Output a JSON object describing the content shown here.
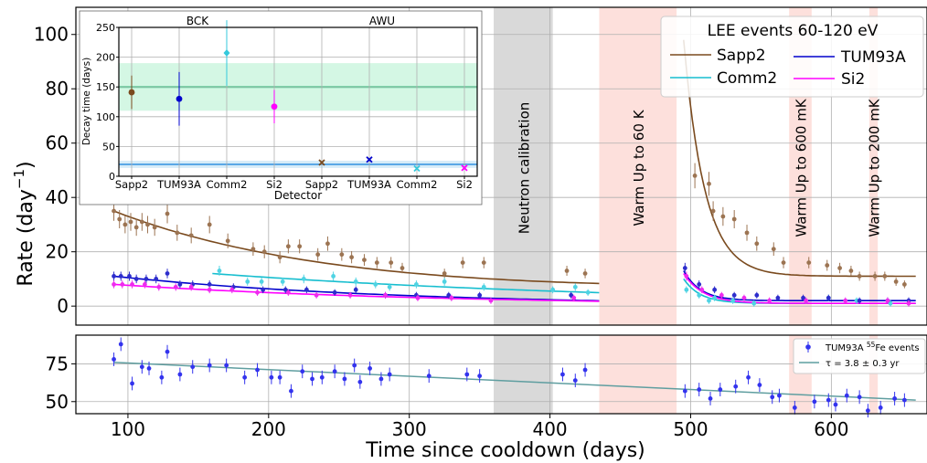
{
  "chart_data": {
    "type": "scatter",
    "xlabel": "Time since cooldown (days)",
    "x_ticks": [
      100,
      200,
      300,
      400,
      500,
      600
    ],
    "xlim": [
      63,
      668
    ],
    "panels": {
      "top": {
        "ylabel_main": "Rate (day",
        "ylabel_sup": "−1",
        "ylabel_end": ")",
        "ylim": [
          -7,
          110
        ],
        "y_ticks": [
          0,
          20,
          40,
          60,
          80,
          100
        ],
        "legend_title": "LEE events 60-120 eV",
        "bands": [
          {
            "label": "Neutron calibration",
            "x0": 360,
            "x1": 402,
            "color": "#d9d9d9"
          },
          {
            "label": "Warm Up to 60 K",
            "x0": 435,
            "x1": 490,
            "color": "#fde0dc"
          },
          {
            "label": "Warm Up to 600 mK",
            "x0": 570,
            "x1": 586,
            "color": "#fde0dc"
          },
          {
            "label": "Warm Up to 200 mK",
            "x0": 627,
            "x1": 633,
            "color": "#fde0dc"
          }
        ],
        "series": [
          {
            "name": "Sapp2",
            "color": "#7a4a1e",
            "point_color": "#9c7452",
            "points": [
              [
                90,
                35
              ],
              [
                94,
                32
              ],
              [
                98,
                30
              ],
              [
                102,
                31
              ],
              [
                106,
                29
              ],
              [
                110,
                31
              ],
              [
                114,
                30
              ],
              [
                119,
                29
              ],
              [
                128,
                34
              ],
              [
                135,
                27
              ],
              [
                145,
                26
              ],
              [
                158,
                30
              ],
              [
                171,
                24
              ],
              [
                189,
                21
              ],
              [
                197,
                20
              ],
              [
                208,
                18
              ],
              [
                214,
                22
              ],
              [
                222,
                22
              ],
              [
                235,
                19
              ],
              [
                242,
                23
              ],
              [
                252,
                19
              ],
              [
                259,
                18
              ],
              [
                268,
                17
              ],
              [
                277,
                16
              ],
              [
                287,
                16
              ],
              [
                295,
                14
              ],
              [
                325,
                12
              ],
              [
                338,
                16
              ],
              [
                353,
                16
              ],
              [
                412,
                13
              ],
              [
                425,
                12
              ],
              [
                503,
                48
              ],
              [
                513,
                45
              ],
              [
                516,
                35
              ],
              [
                523,
                33
              ],
              [
                531,
                32
              ],
              [
                540,
                27
              ],
              [
                547,
                23
              ],
              [
                559,
                21
              ],
              [
                566,
                16
              ],
              [
                584,
                16
              ],
              [
                597,
                15
              ],
              [
                606,
                14
              ],
              [
                614,
                13
              ],
              [
                620,
                11
              ],
              [
                631,
                11
              ],
              [
                638,
                11
              ],
              [
                646,
                9
              ],
              [
                652,
                8
              ]
            ],
            "fits": [
              [
                90,
                35,
                165
              ],
              [
                435,
                0,
                0
              ],
              [
                495,
                98,
                15
              ],
              [
                660,
                11,
                0
              ]
            ]
          },
          {
            "name": "Comm2",
            "color": "#17becf",
            "point_color": "#4fd3e3",
            "points": [
              [
                165,
                13
              ],
              [
                185,
                9
              ],
              [
                195,
                9
              ],
              [
                210,
                9
              ],
              [
                225,
                10
              ],
              [
                246,
                11
              ],
              [
                262,
                9
              ],
              [
                276,
                8
              ],
              [
                286,
                7
              ],
              [
                305,
                8
              ],
              [
                325,
                9
              ],
              [
                353,
                7
              ],
              [
                402,
                6
              ],
              [
                418,
                7
              ],
              [
                427,
                5
              ],
              [
                497,
                6
              ],
              [
                506,
                4
              ],
              [
                513,
                2
              ],
              [
                517,
                3
              ],
              [
                530,
                2
              ],
              [
                545,
                1
              ],
              [
                582,
                2
              ],
              [
                598,
                3
              ],
              [
                618,
                2
              ],
              [
                642,
                1
              ]
            ],
            "fits": [
              [
                160,
                12,
                310
              ],
              [
                435,
                0,
                0
              ],
              [
                495,
                10,
                12
              ],
              [
                660,
                1,
                0
              ]
            ]
          },
          {
            "name": "TUM93A",
            "color": "#0000cc",
            "point_color": "#2d2dcc",
            "points": [
              [
                90,
                11
              ],
              [
                95,
                11
              ],
              [
                101,
                11
              ],
              [
                106,
                10
              ],
              [
                113,
                10
              ],
              [
                120,
                10
              ],
              [
                128,
                12
              ],
              [
                137,
                8
              ],
              [
                146,
                8
              ],
              [
                158,
                8
              ],
              [
                175,
                7
              ],
              [
                196,
                6
              ],
              [
                212,
                6
              ],
              [
                227,
                6
              ],
              [
                247,
                5
              ],
              [
                262,
                6
              ],
              [
                283,
                4
              ],
              [
                305,
                4
              ],
              [
                328,
                4
              ],
              [
                350,
                4
              ],
              [
                415,
                4
              ],
              [
                496,
                14
              ],
              [
                506,
                8
              ],
              [
                517,
                6
              ],
              [
                531,
                4
              ],
              [
                547,
                4
              ],
              [
                562,
                3
              ],
              [
                580,
                3
              ],
              [
                598,
                3
              ],
              [
                620,
                2
              ],
              [
                640,
                2
              ],
              [
                655,
                2
              ]
            ],
            "fits": [
              [
                90,
                11,
                200
              ],
              [
                435,
                0,
                0
              ],
              [
                495,
                13,
                12
              ],
              [
                660,
                2,
                0
              ]
            ]
          },
          {
            "name": "Si2",
            "color": "#ff00ff",
            "point_color": "#ee2bee",
            "points": [
              [
                90,
                8
              ],
              [
                96,
                8
              ],
              [
                103,
                8
              ],
              [
                112,
                8
              ],
              [
                122,
                7
              ],
              [
                134,
                7
              ],
              [
                145,
                7
              ],
              [
                158,
                6
              ],
              [
                174,
                6
              ],
              [
                192,
                5
              ],
              [
                214,
                5
              ],
              [
                234,
                4
              ],
              [
                258,
                4
              ],
              [
                283,
                4
              ],
              [
                306,
                3
              ],
              [
                330,
                3
              ],
              [
                358,
                2
              ],
              [
                417,
                3
              ],
              [
                497,
                11
              ],
              [
                508,
                6
              ],
              [
                522,
                4
              ],
              [
                538,
                3
              ],
              [
                556,
                2
              ],
              [
                582,
                2
              ],
              [
                610,
                2
              ],
              [
                640,
                2
              ],
              [
                655,
                1
              ]
            ],
            "fits": [
              [
                90,
                8,
                230
              ],
              [
                435,
                0,
                0
              ],
              [
                495,
                12,
                14
              ],
              [
                660,
                1,
                0
              ]
            ]
          }
        ]
      },
      "bottom": {
        "ylim": [
          42,
          94
        ],
        "y_ticks": [
          50,
          75
        ],
        "series": {
          "name": "TUM93A ",
          "color": "#3333ee"
        },
        "legend_sup": "55",
        "legend_rest": "Fe events",
        "fit_label": "τ = 3.8 ± 0.3 yr",
        "fit_color": "#5f9ea0",
        "fit_line": [
          [
            90,
            76
          ],
          [
            660,
            51
          ]
        ],
        "points": [
          [
            90,
            78
          ],
          [
            95,
            88
          ],
          [
            103,
            62
          ],
          [
            110,
            73
          ],
          [
            115,
            72
          ],
          [
            124,
            66
          ],
          [
            128,
            83
          ],
          [
            137,
            68
          ],
          [
            146,
            73
          ],
          [
            158,
            74
          ],
          [
            170,
            74
          ],
          [
            183,
            66
          ],
          [
            192,
            71
          ],
          [
            202,
            66
          ],
          [
            208,
            66
          ],
          [
            216,
            57
          ],
          [
            224,
            70
          ],
          [
            231,
            65
          ],
          [
            238,
            66
          ],
          [
            247,
            70
          ],
          [
            254,
            65
          ],
          [
            261,
            74
          ],
          [
            265,
            63
          ],
          [
            272,
            72
          ],
          [
            280,
            65
          ],
          [
            286,
            68
          ],
          [
            314,
            67
          ],
          [
            341,
            68
          ],
          [
            350,
            67
          ],
          [
            409,
            68
          ],
          [
            418,
            64
          ],
          [
            425,
            71
          ],
          [
            496,
            57
          ],
          [
            506,
            58
          ],
          [
            514,
            52
          ],
          [
            521,
            58
          ],
          [
            532,
            60
          ],
          [
            541,
            66
          ],
          [
            549,
            61
          ],
          [
            558,
            53
          ],
          [
            563,
            54
          ],
          [
            574,
            46
          ],
          [
            588,
            50
          ],
          [
            598,
            51
          ],
          [
            603,
            48
          ],
          [
            611,
            54
          ],
          [
            620,
            53
          ],
          [
            626,
            44
          ],
          [
            635,
            46
          ],
          [
            645,
            52
          ],
          [
            652,
            51
          ]
        ]
      }
    },
    "inset": {
      "xlabel": "Detector",
      "ylabel": "Decay time (days)",
      "ylim": [
        0,
        250
      ],
      "y_ticks": [
        0,
        50,
        100,
        150,
        200,
        250
      ],
      "group_labels": [
        "BCK",
        "AWU"
      ],
      "categories": [
        "Sapp2",
        "TUM93A",
        "Comm2",
        "Si2",
        "Sapp2",
        "TUM93A",
        "Comm2",
        "Si2"
      ],
      "bands": [
        {
          "center": 150,
          "low": 110,
          "high": 190,
          "line_color": "#3dd68c",
          "fill_color": "#d4f7e4"
        },
        {
          "center": 20,
          "low": 14,
          "high": 26,
          "line_color": "#5aa7e6",
          "fill_color": "#d6ecf8"
        }
      ],
      "points": [
        {
          "value": 141,
          "err": 28,
          "color": "#7a4a1e",
          "marker": "dot"
        },
        {
          "value": 130,
          "err": 45,
          "color": "#0000cc",
          "marker": "dot"
        },
        {
          "value": 207,
          "err": 55,
          "color": "#35c9dc",
          "marker": "diamond"
        },
        {
          "value": 117,
          "err": 28,
          "color": "#ff00ff",
          "marker": "dot"
        },
        {
          "value": 23,
          "err": 2,
          "color": "#7a4a1e",
          "marker": "x"
        },
        {
          "value": 28,
          "err": 2,
          "color": "#0000cc",
          "marker": "x"
        },
        {
          "value": 13,
          "err": 2,
          "color": "#35c9dc",
          "marker": "x"
        },
        {
          "value": 14,
          "err": 2,
          "color": "#ff00ff",
          "marker": "x"
        }
      ]
    }
  }
}
